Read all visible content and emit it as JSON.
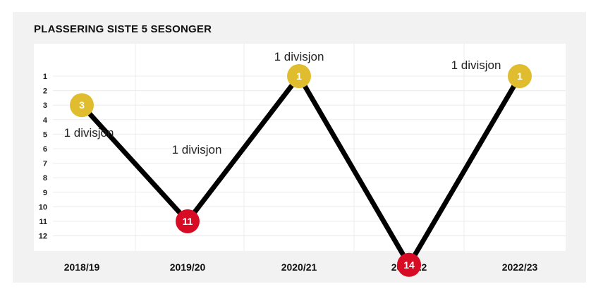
{
  "title": "PLASSERING SISTE 5 SESONGER",
  "chart_data": {
    "type": "line",
    "title": "PLASSERING SISTE 5 SESONGER",
    "categories": [
      "2018/19",
      "2019/20",
      "2020/21",
      "2021/22",
      "2022/23"
    ],
    "series": [
      {
        "values": [
          3,
          11,
          1,
          14,
          1
        ],
        "division_labels": [
          "1 divisjon",
          "1 divisjon",
          "1 divisjon",
          "",
          "1 divisjon"
        ]
      }
    ],
    "y_ticks": [
      1,
      2,
      3,
      4,
      5,
      6,
      7,
      8,
      9,
      10,
      11,
      12
    ],
    "ylim": [
      1,
      14
    ],
    "y_reversed": true,
    "grid": true,
    "colors": {
      "line": "#000000",
      "top_marker": "#e0bd2e",
      "low_marker": "#d80b24"
    }
  }
}
